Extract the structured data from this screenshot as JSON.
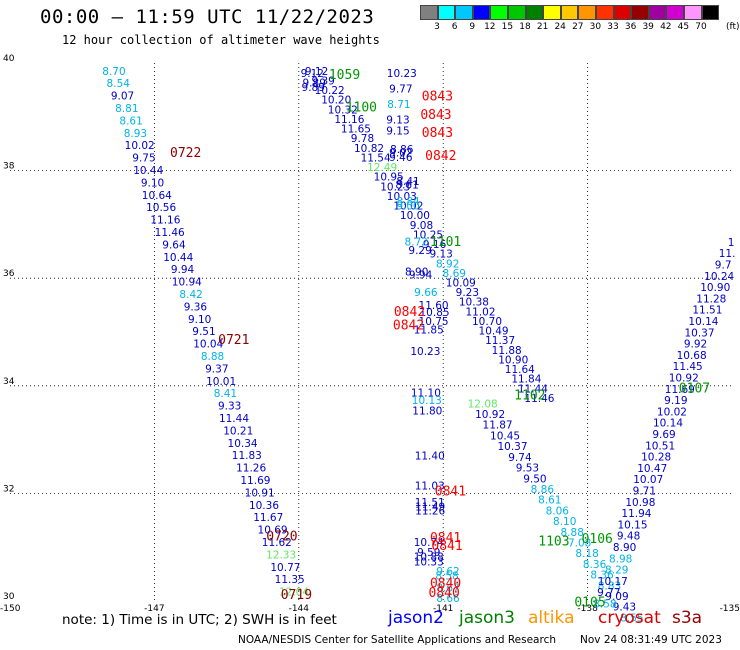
{
  "title": "00:00 – 11:59 UTC 11/22/2023",
  "subtitle": "12 hour collection of altimeter wave heights",
  "legend": {
    "unit": "(ft)",
    "bins": [
      {
        "label": "3",
        "color": "#808080"
      },
      {
        "label": "6",
        "color": "#00ffff"
      },
      {
        "label": "9",
        "color": "#00c8ff"
      },
      {
        "label": "12",
        "color": "#0000ff"
      },
      {
        "label": "15",
        "color": "#00ff00"
      },
      {
        "label": "18",
        "color": "#00c800"
      },
      {
        "label": "21",
        "color": "#008000"
      },
      {
        "label": "24",
        "color": "#ffff00"
      },
      {
        "label": "27",
        "color": "#ffc800"
      },
      {
        "label": "30",
        "color": "#ff9600"
      },
      {
        "label": "33",
        "color": "#ff3200"
      },
      {
        "label": "36",
        "color": "#dc0000"
      },
      {
        "label": "39",
        "color": "#960000"
      },
      {
        "label": "42",
        "color": "#a000a0"
      },
      {
        "label": "45",
        "color": "#d000d0"
      },
      {
        "label": "70",
        "color": "#ff96ff"
      },
      {
        "label": "",
        "color": "#000000"
      }
    ]
  },
  "note": "note:  1) Time is in UTC;  2) SWH is in feet",
  "satellites": [
    {
      "name": "jason2",
      "color": "#0000ff"
    },
    {
      "name": "jason3",
      "color": "#008000"
    },
    {
      "name": "altika",
      "color": "#ff9600"
    },
    {
      "name": "cryosat",
      "color": "#dc0000"
    },
    {
      "name": "s3a",
      "color": "#960000"
    }
  ],
  "credit": "NOAA/NESDIS Center for Satellite Applications and Research",
  "timestamp": "Nov 24 08:31:49 UTC 2023",
  "chart_data": {
    "type": "scatter",
    "xlim": [
      -150,
      -135
    ],
    "ylim": [
      30,
      40
    ],
    "x_ticks": [
      {
        "v": -150,
        "label": "-150"
      },
      {
        "v": -147,
        "label": "-147"
      },
      {
        "v": -144,
        "label": "-144"
      },
      {
        "v": -141,
        "label": "-141"
      },
      {
        "v": -138,
        "label": "-138"
      },
      {
        "v": -135,
        "label": "-135"
      }
    ],
    "y_ticks": [
      {
        "v": 30,
        "label": "30"
      },
      {
        "v": 32,
        "label": "32"
      },
      {
        "v": 34,
        "label": "34"
      },
      {
        "v": 36,
        "label": "36"
      },
      {
        "v": 38,
        "label": "38"
      },
      {
        "v": 40,
        "label": "40"
      }
    ],
    "grid": true,
    "colors": {
      "blue": "#0000c8",
      "cyan": "#00b4e6",
      "lgreen": "#64e664",
      "dgreen": "#009600",
      "red": "#ff0000",
      "maroon": "#8c0000"
    },
    "tracks": [
      {
        "name": "track-0720",
        "start": [
          -147.84,
          39.78
        ],
        "end": [
          -144.1,
          30.1
        ],
        "c": "blue",
        "values": [
          {
            "t": "8.70",
            "c": "cyan"
          },
          {
            "t": "8.54",
            "c": "cyan"
          },
          {
            "t": "9.07"
          },
          {
            "t": "8.81",
            "c": "cyan"
          },
          {
            "t": "8.61",
            "c": "cyan"
          },
          {
            "t": "8.93",
            "c": "cyan"
          },
          {
            "t": "10.02"
          },
          {
            "t": "9.75"
          },
          {
            "t": "10.44"
          },
          {
            "t": "9.10"
          },
          {
            "t": "10.64"
          },
          {
            "t": "10.56"
          },
          {
            "t": "11.16"
          },
          {
            "t": "11.46"
          },
          {
            "t": "9.64"
          },
          {
            "t": "10.44"
          },
          {
            "t": "9.94"
          },
          {
            "t": "10.94"
          },
          {
            "t": "8.42",
            "c": "cyan"
          },
          {
            "t": "9.36"
          },
          {
            "t": "9.10"
          },
          {
            "t": "9.51"
          },
          {
            "t": "10.04"
          },
          {
            "t": "8.88",
            "c": "cyan"
          },
          {
            "t": "9.37"
          },
          {
            "t": "10.01"
          },
          {
            "t": "8.41",
            "c": "cyan"
          },
          {
            "t": "9.33"
          },
          {
            "t": "11.44"
          },
          {
            "t": "10.21"
          },
          {
            "t": "10.34"
          },
          {
            "t": "11.83"
          },
          {
            "t": "11.26"
          },
          {
            "t": "11.69"
          },
          {
            "t": "10.91"
          },
          {
            "t": "10.36"
          },
          {
            "t": "11.67"
          },
          {
            "t": "10.69"
          },
          {
            "t": "11.62"
          },
          {
            "t": "12.33",
            "c": "lgreen"
          },
          {
            "t": "10.77"
          },
          {
            "t": "11.35"
          },
          {
            "t": "12.04",
            "c": "lgreen"
          }
        ]
      },
      {
        "name": "track-1100",
        "start": [
          -143.63,
          39.78
        ],
        "end": [
          -139.0,
          33.7
        ],
        "c": "blue",
        "values": [
          {
            "t": "9.12"
          },
          {
            "t": "9.39"
          },
          {
            "t": "10.22"
          },
          {
            "t": "10.20"
          },
          {
            "t": "10.32"
          },
          {
            "t": "11.16"
          },
          {
            "t": "11.65"
          },
          {
            "t": "9.78"
          },
          {
            "t": "10.82"
          },
          {
            "t": "11.54"
          },
          {
            "t": "12.49",
            "c": "lgreen"
          },
          {
            "t": "10.95"
          },
          {
            "t": "10.23"
          },
          {
            "t": "10.03"
          },
          {
            "t": "10.02"
          },
          {
            "t": "10.00"
          },
          {
            "t": "9.08"
          },
          {
            "t": "10.25"
          },
          {
            "t": "9.16"
          },
          {
            "t": "9.13"
          },
          {
            "t": "8.92",
            "c": "cyan"
          },
          {
            "t": "8.69",
            "c": "cyan"
          },
          {
            "t": "10.09"
          },
          {
            "t": "9.23"
          },
          {
            "t": "10.38"
          },
          {
            "t": "11.02"
          },
          {
            "t": "10.70"
          },
          {
            "t": "10.49"
          },
          {
            "t": "11.37"
          },
          {
            "t": "11.88"
          },
          {
            "t": "10.90"
          },
          {
            "t": "11.64"
          },
          {
            "t": "11.84"
          },
          {
            "t": "11.44"
          },
          {
            "t": "11.46"
          }
        ]
      },
      {
        "name": "track-1102",
        "start": [
          -140.18,
          33.6
        ],
        "end": [
          -137.08,
          29.62
        ],
        "c": "blue",
        "values": [
          {
            "t": "12.08",
            "c": "lgreen"
          },
          {
            "t": "10.92"
          },
          {
            "t": "11.87"
          },
          {
            "t": "10.45"
          },
          {
            "t": "10.37"
          },
          {
            "t": "9.74"
          },
          {
            "t": "9.53"
          },
          {
            "t": "9.50"
          },
          {
            "t": "8.86",
            "c": "cyan"
          },
          {
            "t": "8.61",
            "c": "cyan"
          },
          {
            "t": "8.06",
            "c": "cyan"
          },
          {
            "t": "8.10",
            "c": "cyan"
          },
          {
            "t": "8.88",
            "c": "cyan"
          },
          {
            "t": "7.08",
            "c": "cyan"
          },
          {
            "t": "8.18",
            "c": "cyan"
          },
          {
            "t": "8.36",
            "c": "cyan"
          },
          {
            "t": "8.36",
            "c": "cyan"
          },
          {
            "t": "8.83",
            "c": "cyan"
          },
          {
            "t": "9.09"
          },
          {
            "t": "9.43"
          },
          {
            "t": "8.55",
            "c": "cyan"
          }
        ]
      },
      {
        "name": "track-0107",
        "start": [
          -137.64,
          29.88
        ],
        "end": [
          -135.02,
          36.6
        ],
        "c": "blue",
        "values": [
          {
            "t": "8.58",
            "c": "cyan"
          },
          {
            "t": "9.77"
          },
          {
            "t": "10.17"
          },
          {
            "t": "8.29",
            "c": "cyan"
          },
          {
            "t": "8.98",
            "c": "cyan"
          },
          {
            "t": "8.90"
          },
          {
            "t": "9.48"
          },
          {
            "t": "10.15"
          },
          {
            "t": "11.94"
          },
          {
            "t": "10.98"
          },
          {
            "t": "9.71"
          },
          {
            "t": "10.07"
          },
          {
            "t": "10.47"
          },
          {
            "t": "10.28"
          },
          {
            "t": "10.51"
          },
          {
            "t": "9.69"
          },
          {
            "t": "10.14"
          },
          {
            "t": "10.02"
          },
          {
            "t": "9.19"
          },
          {
            "t": "11.69"
          },
          {
            "t": "10.92"
          },
          {
            "t": "11.45"
          },
          {
            "t": "10.68"
          },
          {
            "t": "9.92"
          },
          {
            "t": "10.37"
          },
          {
            "t": "10.14"
          },
          {
            "t": "11.51"
          },
          {
            "t": "11.28"
          },
          {
            "t": "10.90"
          },
          {
            "t": "10.24"
          },
          {
            "t": "9.7"
          },
          {
            "t": "11."
          },
          {
            "t": "1"
          }
        ]
      }
    ],
    "points": [
      {
        "x": -143.72,
        "y": 39.74,
        "t": "9.12"
      },
      {
        "x": -143.68,
        "y": 39.56,
        "t": "9.89"
      },
      {
        "x": -143.7,
        "y": 39.48,
        "t": "9.89"
      },
      {
        "x": -141.86,
        "y": 39.74,
        "t": "10.23"
      },
      {
        "x": -141.88,
        "y": 39.45,
        "t": "9.77"
      },
      {
        "x": -141.92,
        "y": 39.16,
        "t": "8.71",
        "c": "cyan"
      },
      {
        "x": -141.94,
        "y": 38.88,
        "t": "9.13"
      },
      {
        "x": -141.94,
        "y": 38.67,
        "t": "9.15"
      },
      {
        "x": -141.86,
        "y": 38.33,
        "t": "8.86"
      },
      {
        "x": -141.88,
        "y": 38.26,
        "t": "9.02"
      },
      {
        "x": -141.88,
        "y": 38.18,
        "t": "9.46"
      },
      {
        "x": -141.73,
        "y": 37.73,
        "t": "8.41"
      },
      {
        "x": -141.75,
        "y": 37.67,
        "t": "8.61"
      },
      {
        "x": -141.73,
        "y": 37.36,
        "t": "8.84",
        "c": "cyan"
      },
      {
        "x": -141.73,
        "y": 37.28,
        "t": "9.00",
        "c": "cyan"
      },
      {
        "x": -141.56,
        "y": 36.61,
        "t": "8.72",
        "c": "cyan"
      },
      {
        "x": -141.48,
        "y": 36.45,
        "t": "9.29"
      },
      {
        "x": -141.55,
        "y": 36.05,
        "t": "8.90"
      },
      {
        "x": -141.47,
        "y": 35.99,
        "t": "9.94"
      },
      {
        "x": -141.36,
        "y": 35.67,
        "t": "9.66",
        "c": "cyan"
      },
      {
        "x": -141.2,
        "y": 35.43,
        "t": "11.60"
      },
      {
        "x": -141.18,
        "y": 35.3,
        "t": "10.85"
      },
      {
        "x": -141.2,
        "y": 35.13,
        "t": "10.75"
      },
      {
        "x": -141.37,
        "y": 34.57,
        "t": "10.23"
      },
      {
        "x": -141.3,
        "y": 34.97,
        "t": "11.85"
      },
      {
        "x": -141.36,
        "y": 33.8,
        "t": "11.10"
      },
      {
        "x": -141.34,
        "y": 33.66,
        "t": "10.13",
        "c": "cyan"
      },
      {
        "x": -141.33,
        "y": 33.47,
        "t": "11.80"
      },
      {
        "x": -141.28,
        "y": 32.63,
        "t": "11.40"
      },
      {
        "x": -141.28,
        "y": 32.07,
        "t": "11.03"
      },
      {
        "x": -141.28,
        "y": 31.77,
        "t": "11.51"
      },
      {
        "x": -141.27,
        "y": 31.68,
        "t": "11.49"
      },
      {
        "x": -141.27,
        "y": 31.61,
        "t": "11.26"
      },
      {
        "x": -141.3,
        "y": 31.02,
        "t": "10.74"
      },
      {
        "x": -141.3,
        "y": 30.84,
        "t": "9.59"
      },
      {
        "x": -141.3,
        "y": 30.75,
        "t": "10.88"
      },
      {
        "x": -141.3,
        "y": 30.66,
        "t": "10.33"
      },
      {
        "x": -140.9,
        "y": 30.48,
        "t": "9.62",
        "c": "cyan"
      },
      {
        "x": -140.92,
        "y": 30.4,
        "t": "8.58",
        "c": "cyan"
      },
      {
        "x": -140.9,
        "y": 30.18,
        "t": "8.67",
        "c": "cyan"
      },
      {
        "x": -140.9,
        "y": 29.98,
        "t": "8.66",
        "c": "cyan"
      }
    ],
    "labels": [
      {
        "x": -146.35,
        "y": 38.25,
        "t": "0722",
        "c": "maroon"
      },
      {
        "x": -145.35,
        "y": 34.78,
        "t": "0721",
        "c": "maroon"
      },
      {
        "x": -144.35,
        "y": 31.12,
        "t": "0720",
        "c": "maroon"
      },
      {
        "x": -144.05,
        "y": 30.04,
        "t": "0719",
        "c": "maroon"
      },
      {
        "x": -143.05,
        "y": 39.7,
        "t": "1059",
        "c": "dgreen"
      },
      {
        "x": -142.7,
        "y": 39.1,
        "t": "1100",
        "c": "dgreen"
      },
      {
        "x": -140.95,
        "y": 36.6,
        "t": "1101",
        "c": "dgreen"
      },
      {
        "x": -139.2,
        "y": 33.75,
        "t": "1102",
        "c": "dgreen"
      },
      {
        "x": -138.7,
        "y": 31.03,
        "t": "1103",
        "c": "dgreen"
      },
      {
        "x": -137.8,
        "y": 31.08,
        "t": "0106",
        "c": "dgreen"
      },
      {
        "x": -135.78,
        "y": 33.88,
        "t": "0107",
        "c": "dgreen"
      },
      {
        "x": -137.95,
        "y": 29.9,
        "t": "0105",
        "c": "dgreen"
      },
      {
        "x": -141.12,
        "y": 39.3,
        "t": "0843",
        "c": "red"
      },
      {
        "x": -141.15,
        "y": 38.96,
        "t": "0843",
        "c": "red"
      },
      {
        "x": -141.12,
        "y": 38.62,
        "t": "0843",
        "c": "red"
      },
      {
        "x": -141.05,
        "y": 38.2,
        "t": "0842",
        "c": "red"
      },
      {
        "x": -141.7,
        "y": 35.3,
        "t": "0842",
        "c": "red"
      },
      {
        "x": -141.72,
        "y": 35.05,
        "t": "0842",
        "c": "red"
      },
      {
        "x": -140.85,
        "y": 31.96,
        "t": "0841",
        "c": "red"
      },
      {
        "x": -140.95,
        "y": 31.1,
        "t": "0841",
        "c": "red"
      },
      {
        "x": -140.92,
        "y": 30.95,
        "t": "0841",
        "c": "red"
      },
      {
        "x": -140.95,
        "y": 30.25,
        "t": "0840",
        "c": "red"
      },
      {
        "x": -140.98,
        "y": 30.07,
        "t": "0840",
        "c": "red"
      }
    ]
  }
}
